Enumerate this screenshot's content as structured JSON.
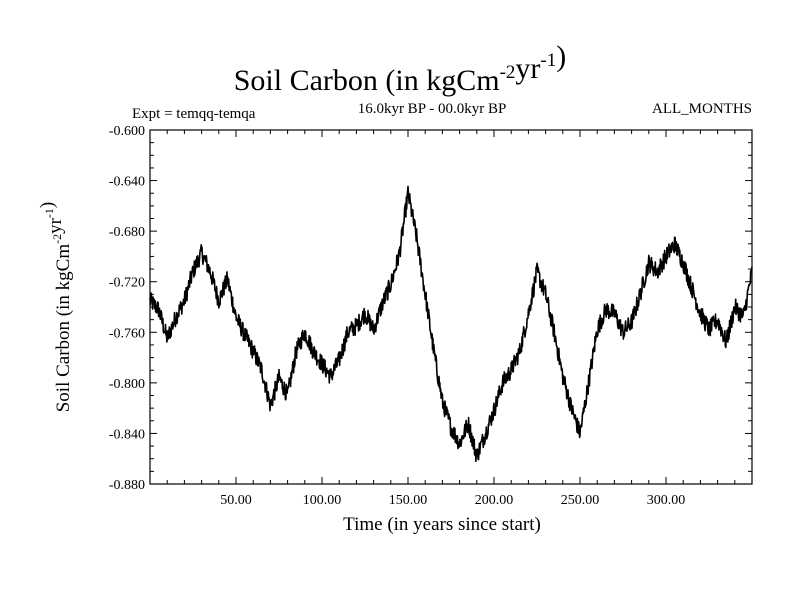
{
  "chart_data": {
    "type": "line",
    "title": "Soil Carbon (in kgCm",
    "title_units": [
      {
        "base": "Soil Carbon (in kgCm",
        "sup": "-2"
      },
      {
        "base": "yr",
        "sup": "-1"
      },
      {
        "base": ")",
        "sup": ""
      }
    ],
    "subtitle_left": "Expt = temqq-temqa",
    "subtitle_center": "16.0kyr BP - 00.0kyr BP",
    "subtitle_right": "ALL_MONTHS",
    "xlabel": "Time (in years since start)",
    "ylabel_parts": [
      {
        "base": "Soil Carbon (in kgCm",
        "sup": "-2"
      },
      {
        "base": "yr",
        "sup": "-1"
      },
      {
        "base": ")",
        "sup": ""
      }
    ],
    "xlim": [
      0,
      350
    ],
    "ylim": [
      -0.88,
      -0.6
    ],
    "x_ticks": [
      50,
      100,
      150,
      200,
      250,
      300
    ],
    "x_tick_labels": [
      "50.00",
      "100.00",
      "150.00",
      "200.00",
      "250.00",
      "300.00"
    ],
    "y_ticks": [
      -0.6,
      -0.64,
      -0.68,
      -0.72,
      -0.76,
      -0.8,
      -0.84,
      -0.88
    ],
    "y_tick_labels": [
      "-0.600",
      "-0.640",
      "-0.680",
      "-0.720",
      "-0.760",
      "-0.800",
      "-0.840",
      "-0.880"
    ],
    "line_color": "#000000",
    "series": [
      {
        "name": "Soil Carbon",
        "x": [
          0,
          5,
          10,
          15,
          20,
          25,
          30,
          35,
          40,
          45,
          50,
          55,
          60,
          65,
          70,
          75,
          80,
          85,
          90,
          95,
          100,
          105,
          110,
          115,
          120,
          125,
          130,
          135,
          140,
          145,
          150,
          155,
          160,
          165,
          170,
          175,
          180,
          185,
          190,
          195,
          200,
          205,
          210,
          215,
          220,
          225,
          230,
          235,
          240,
          245,
          250,
          255,
          260,
          265,
          270,
          275,
          280,
          285,
          290,
          295,
          300,
          305,
          310,
          315,
          320,
          325,
          330,
          335,
          340,
          345,
          350
        ],
        "y": [
          -0.735,
          -0.742,
          -0.765,
          -0.748,
          -0.735,
          -0.712,
          -0.697,
          -0.712,
          -0.735,
          -0.718,
          -0.748,
          -0.762,
          -0.775,
          -0.79,
          -0.818,
          -0.796,
          -0.81,
          -0.775,
          -0.76,
          -0.775,
          -0.785,
          -0.795,
          -0.782,
          -0.76,
          -0.755,
          -0.745,
          -0.758,
          -0.738,
          -0.722,
          -0.698,
          -0.65,
          -0.685,
          -0.73,
          -0.775,
          -0.815,
          -0.835,
          -0.848,
          -0.832,
          -0.858,
          -0.84,
          -0.822,
          -0.8,
          -0.79,
          -0.775,
          -0.745,
          -0.712,
          -0.73,
          -0.76,
          -0.795,
          -0.82,
          -0.84,
          -0.8,
          -0.758,
          -0.742,
          -0.745,
          -0.76,
          -0.752,
          -0.73,
          -0.705,
          -0.712,
          -0.7,
          -0.69,
          -0.705,
          -0.725,
          -0.745,
          -0.758,
          -0.75,
          -0.768,
          -0.74,
          -0.748,
          -0.712
        ]
      }
    ]
  }
}
